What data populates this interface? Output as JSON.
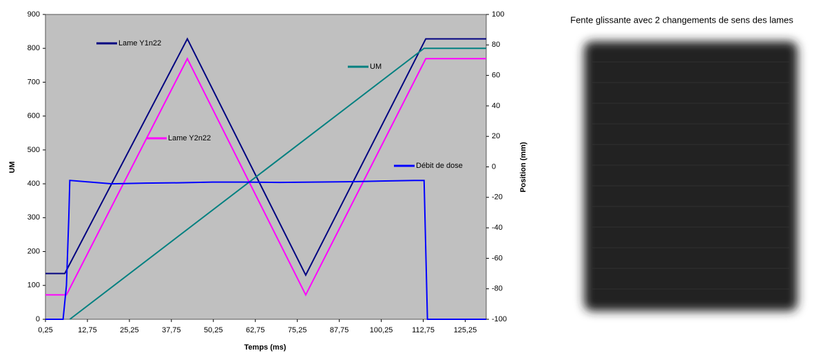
{
  "chart_data": {
    "type": "line",
    "xlabel": "Temps (ms)",
    "ylabel": "UM",
    "y2label": "Position (mm)",
    "xlim": [
      0.25,
      131.5
    ],
    "ylim": [
      0,
      900
    ],
    "y2lim": [
      -100,
      100
    ],
    "xticks": [
      {
        "value": 0.25,
        "label": "0,25"
      },
      {
        "value": 12.75,
        "label": "12,75"
      },
      {
        "value": 25.25,
        "label": "25,25"
      },
      {
        "value": 37.75,
        "label": "37,75"
      },
      {
        "value": 50.25,
        "label": "50,25"
      },
      {
        "value": 62.75,
        "label": "62,75"
      },
      {
        "value": 75.25,
        "label": "75,25"
      },
      {
        "value": 87.75,
        "label": "87,75"
      },
      {
        "value": 100.25,
        "label": "100,25"
      },
      {
        "value": 112.75,
        "label": "112,75"
      },
      {
        "value": 125.25,
        "label": "125,25"
      }
    ],
    "yticks": [
      0,
      100,
      200,
      300,
      400,
      500,
      600,
      700,
      800,
      900
    ],
    "y2ticks": [
      -100,
      -80,
      -60,
      -40,
      -20,
      0,
      20,
      40,
      60,
      80,
      100
    ],
    "background": "#c0c0c0",
    "series": [
      {
        "name": "Lame Y1n22",
        "color": "#000080",
        "axis": "y2",
        "x": [
          0.25,
          6,
          42.5,
          77.75,
          113.5,
          131.5
        ],
        "values": [
          -70,
          -70,
          84,
          -71,
          84,
          84
        ]
      },
      {
        "name": "Lame Y2n22",
        "color": "#ff00ff",
        "axis": "y2",
        "x": [
          0.25,
          6.5,
          42.5,
          77.75,
          113.5,
          131.5
        ],
        "values": [
          -84,
          -84,
          71,
          -84,
          71,
          71
        ]
      },
      {
        "name": "UM",
        "color": "#008080",
        "axis": "y",
        "x": [
          7.5,
          113,
          131.5
        ],
        "values": [
          0,
          800,
          800
        ]
      },
      {
        "name": "Débit de dose",
        "color": "#0000ff",
        "axis": "y",
        "x": [
          0.25,
          5.5,
          6.5,
          7.2,
          7.5,
          20,
          30,
          40,
          50,
          60,
          70,
          80,
          90,
          100,
          110,
          113,
          114,
          131.5
        ],
        "values": [
          0,
          0,
          100,
          300,
          410,
          400,
          402,
          403,
          405,
          405,
          404,
          405,
          406,
          408,
          410,
          410,
          0,
          0
        ]
      }
    ]
  },
  "image": {
    "title": "Fente glissante avec 2 changements de sens des lames"
  }
}
